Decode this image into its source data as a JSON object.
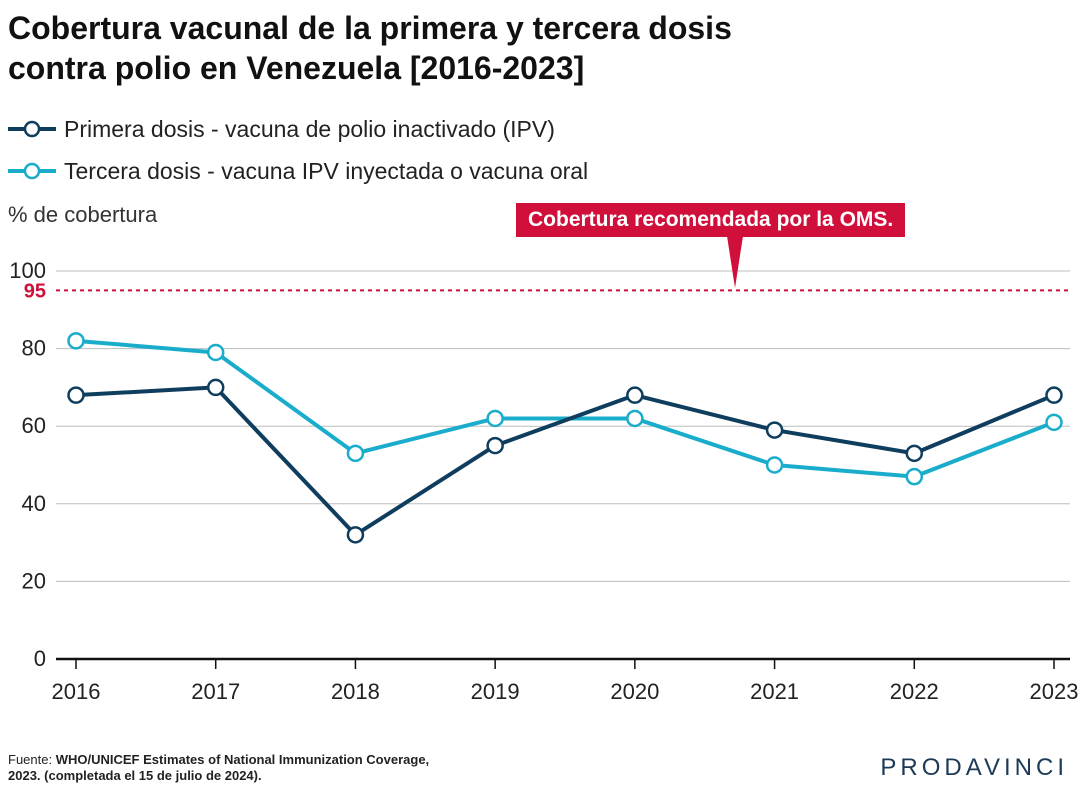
{
  "title_line1": "Cobertura vacunal de la primera y tercera dosis",
  "title_line2": "contra polio en Venezuela [2016-2023]",
  "legend": [
    {
      "label": "Primera dosis - vacuna de polio inactivado (IPV)",
      "color": "#0f3d5e"
    },
    {
      "label": "Tercera dosis - vacuna IPV inyectada o vacuna oral",
      "color": "#1aaccb"
    }
  ],
  "reference": {
    "value": 95,
    "label": "95",
    "callout": "Cobertura recomendada por la OMS.",
    "color": "#d0103a"
  },
  "source_prefix": "Fuente:",
  "source_line1": "WHO/UNICEF Estimates of National Immunization Coverage,",
  "source_line2": "2023. (completada el 15 de julio de 2024).",
  "brand": "PRODAVINCI",
  "chart_data": {
    "type": "line",
    "ylabel": "% de cobertura",
    "xlabel": "",
    "x": [
      "2016",
      "2017",
      "2018",
      "2019",
      "2020",
      "2021",
      "2022",
      "2023"
    ],
    "ylim": [
      0,
      100
    ],
    "yticks": [
      0,
      20,
      40,
      60,
      80,
      100
    ],
    "grid": true,
    "series": [
      {
        "name": "Primera dosis - vacuna de polio inactivado (IPV)",
        "values": [
          68,
          70,
          32,
          55,
          68,
          59,
          53,
          68
        ],
        "color": "#0f3d5e"
      },
      {
        "name": "Tercera dosis - vacuna IPV inyectada o vacuna oral",
        "values": [
          82,
          79,
          53,
          62,
          62,
          50,
          47,
          61
        ],
        "color": "#1aaccb"
      }
    ]
  }
}
